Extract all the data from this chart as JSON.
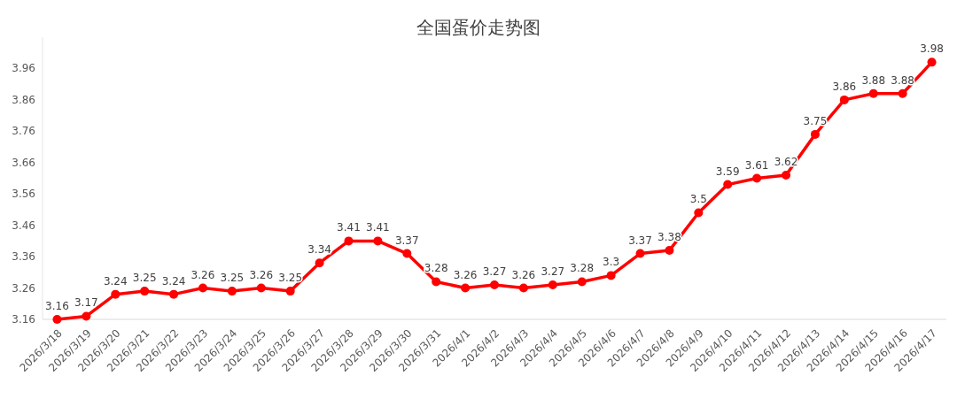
{
  "chart_data": {
    "type": "line",
    "title": "全国蛋价走势图",
    "categories": [
      "2026/3/18",
      "2026/3/19",
      "2026/3/20",
      "2026/3/21",
      "2026/3/22",
      "2026/3/23",
      "2026/3/24",
      "2026/3/25",
      "2026/3/26",
      "2026/3/27",
      "2026/3/28",
      "2026/3/29",
      "2026/3/30",
      "2026/3/31",
      "2026/4/1",
      "2026/4/2",
      "2026/4/3",
      "2026/4/4",
      "2026/4/5",
      "2026/4/6",
      "2026/4/7",
      "2026/4/8",
      "2026/4/9",
      "2026/4/10",
      "2026/4/11",
      "2026/4/12",
      "2026/4/13",
      "2026/4/14",
      "2026/4/15",
      "2026/4/16",
      "2026/4/17"
    ],
    "values": [
      3.16,
      3.17,
      3.24,
      3.25,
      3.24,
      3.26,
      3.25,
      3.26,
      3.25,
      3.34,
      3.41,
      3.41,
      3.37,
      3.28,
      3.26,
      3.27,
      3.26,
      3.27,
      3.28,
      3.3,
      3.37,
      3.38,
      3.5,
      3.59,
      3.61,
      3.62,
      3.75,
      3.86,
      3.88,
      3.88,
      3.98
    ],
    "color": "#ff0000",
    "marker": "circle",
    "line_style": "solid",
    "data_labels": true,
    "ylim": [
      3.16,
      4.06
    ],
    "yticks": [
      3.16,
      3.26,
      3.36,
      3.46,
      3.56,
      3.66,
      3.76,
      3.86,
      3.96
    ]
  }
}
